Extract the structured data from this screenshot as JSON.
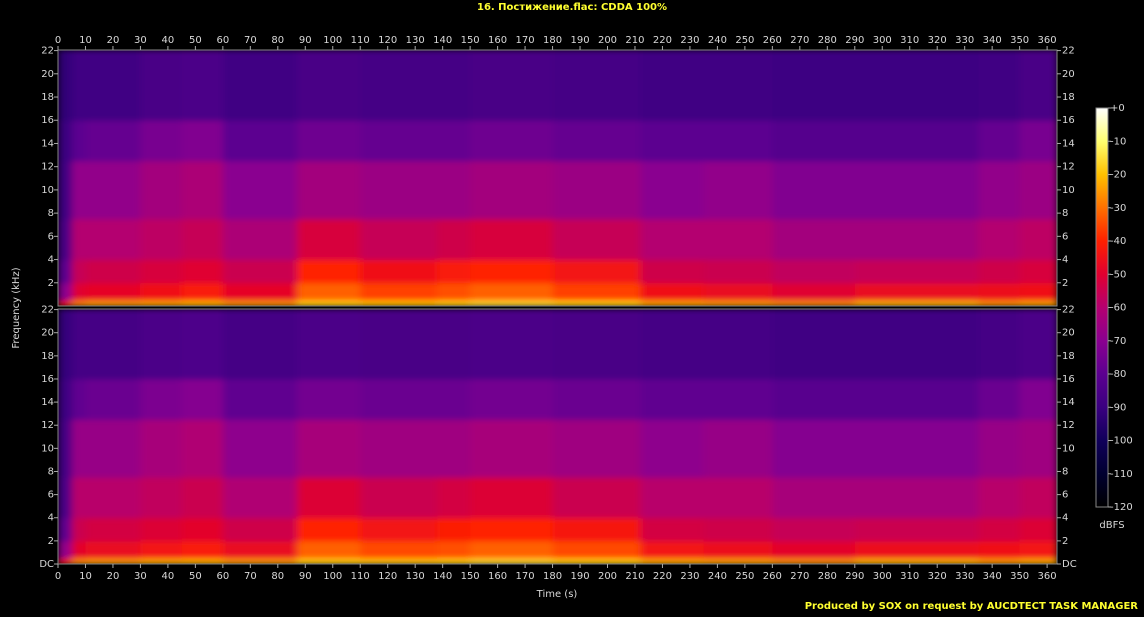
{
  "chart_data": {
    "type": "spectrogram",
    "title": "16. Постижение.flac: CDDA 100%",
    "xlabel": "Time (s)",
    "ylabel": "Frequency (kHz)",
    "colorbar_label": "dBFS",
    "footer": "Produced by SOX on request by AUCDTECT TASK MANAGER",
    "xlim": [
      0,
      363.6
    ],
    "xticks": [
      0,
      10,
      20,
      30,
      40,
      50,
      60,
      70,
      80,
      90,
      100,
      110,
      120,
      130,
      140,
      150,
      160,
      170,
      180,
      190,
      200,
      210,
      220,
      230,
      240,
      250,
      260,
      270,
      280,
      290,
      300,
      310,
      320,
      330,
      340,
      350,
      360
    ],
    "ylim": [
      0,
      22.05
    ],
    "time_bins": [
      0,
      5,
      10,
      30,
      45,
      60,
      87,
      110,
      138,
      150,
      180,
      212,
      235,
      260,
      290,
      335,
      350,
      363.6
    ],
    "freq_bins": [
      0,
      0.5,
      2,
      4,
      7.5,
      12.5,
      16,
      22.05
    ],
    "clim": [
      -120,
      0
    ],
    "colormap": [
      "#000000",
      "#000030",
      "#10005a",
      "#3a0080",
      "#5c0090",
      "#8a0090",
      "#b40070",
      "#e00030",
      "#ff2000",
      "#ff7000",
      "#ffc000",
      "#ffff70",
      "#ffffff"
    ],
    "colorbar_ticks": [
      {
        "value": 0,
        "label": "+0"
      },
      -10,
      -20,
      -30,
      -40,
      -50,
      -60,
      -70,
      -80,
      -90,
      -100,
      -110,
      -120
    ],
    "channels": [
      {
        "yticks": [
          2,
          4,
          6,
          8,
          10,
          12,
          14,
          16,
          18,
          20,
          22
        ],
        "values": [
          [
            -45,
            -28,
            -25,
            -24,
            -22,
            -26,
            -18,
            -20,
            -18,
            -16,
            -18,
            -24,
            -25,
            -27,
            -22,
            -26,
            -24
          ],
          [
            -70,
            -50,
            -48,
            -45,
            -42,
            -48,
            -32,
            -36,
            -34,
            -32,
            -36,
            -45,
            -47,
            -50,
            -47,
            -46,
            -45
          ],
          [
            -80,
            -56,
            -54,
            -52,
            -50,
            -55,
            -40,
            -45,
            -42,
            -40,
            -44,
            -54,
            -55,
            -57,
            -56,
            -54,
            -52
          ],
          [
            -86,
            -60,
            -60,
            -58,
            -56,
            -62,
            -52,
            -56,
            -54,
            -52,
            -56,
            -60,
            -60,
            -64,
            -64,
            -60,
            -58
          ],
          [
            -88,
            -68,
            -68,
            -64,
            -62,
            -70,
            -64,
            -66,
            -66,
            -64,
            -66,
            -70,
            -68,
            -72,
            -72,
            -68,
            -66
          ],
          [
            -90,
            -80,
            -78,
            -74,
            -72,
            -80,
            -76,
            -78,
            -78,
            -76,
            -78,
            -80,
            -80,
            -82,
            -82,
            -78,
            -74
          ],
          [
            -92,
            -88,
            -88,
            -86,
            -85,
            -88,
            -86,
            -87,
            -87,
            -86,
            -87,
            -88,
            -88,
            -89,
            -89,
            -88,
            -86
          ]
        ]
      },
      {
        "yticks": [
          {
            "value": 0,
            "label": "DC"
          },
          2,
          4,
          6,
          8,
          10,
          12,
          14,
          16,
          18,
          20,
          22
        ],
        "values": [
          [
            -44,
            -27,
            -25,
            -23,
            -22,
            -25,
            -18,
            -19,
            -18,
            -16,
            -18,
            -23,
            -24,
            -26,
            -22,
            -25,
            -23
          ],
          [
            -68,
            -49,
            -47,
            -44,
            -42,
            -47,
            -32,
            -35,
            -34,
            -32,
            -35,
            -44,
            -46,
            -49,
            -46,
            -45,
            -44
          ],
          [
            -79,
            -55,
            -53,
            -51,
            -49,
            -54,
            -40,
            -44,
            -41,
            -40,
            -43,
            -53,
            -54,
            -56,
            -55,
            -53,
            -51
          ],
          [
            -85,
            -59,
            -59,
            -57,
            -55,
            -61,
            -51,
            -55,
            -53,
            -51,
            -55,
            -59,
            -59,
            -63,
            -63,
            -59,
            -57
          ],
          [
            -87,
            -67,
            -67,
            -63,
            -61,
            -69,
            -63,
            -65,
            -65,
            -63,
            -65,
            -69,
            -67,
            -71,
            -71,
            -67,
            -65
          ],
          [
            -89,
            -79,
            -77,
            -73,
            -71,
            -79,
            -75,
            -77,
            -77,
            -75,
            -77,
            -79,
            -79,
            -81,
            -81,
            -77,
            -72
          ],
          [
            -91,
            -87,
            -87,
            -85,
            -84,
            -87,
            -85,
            -86,
            -86,
            -85,
            -86,
            -87,
            -87,
            -88,
            -88,
            -87,
            -85
          ]
        ]
      }
    ]
  }
}
